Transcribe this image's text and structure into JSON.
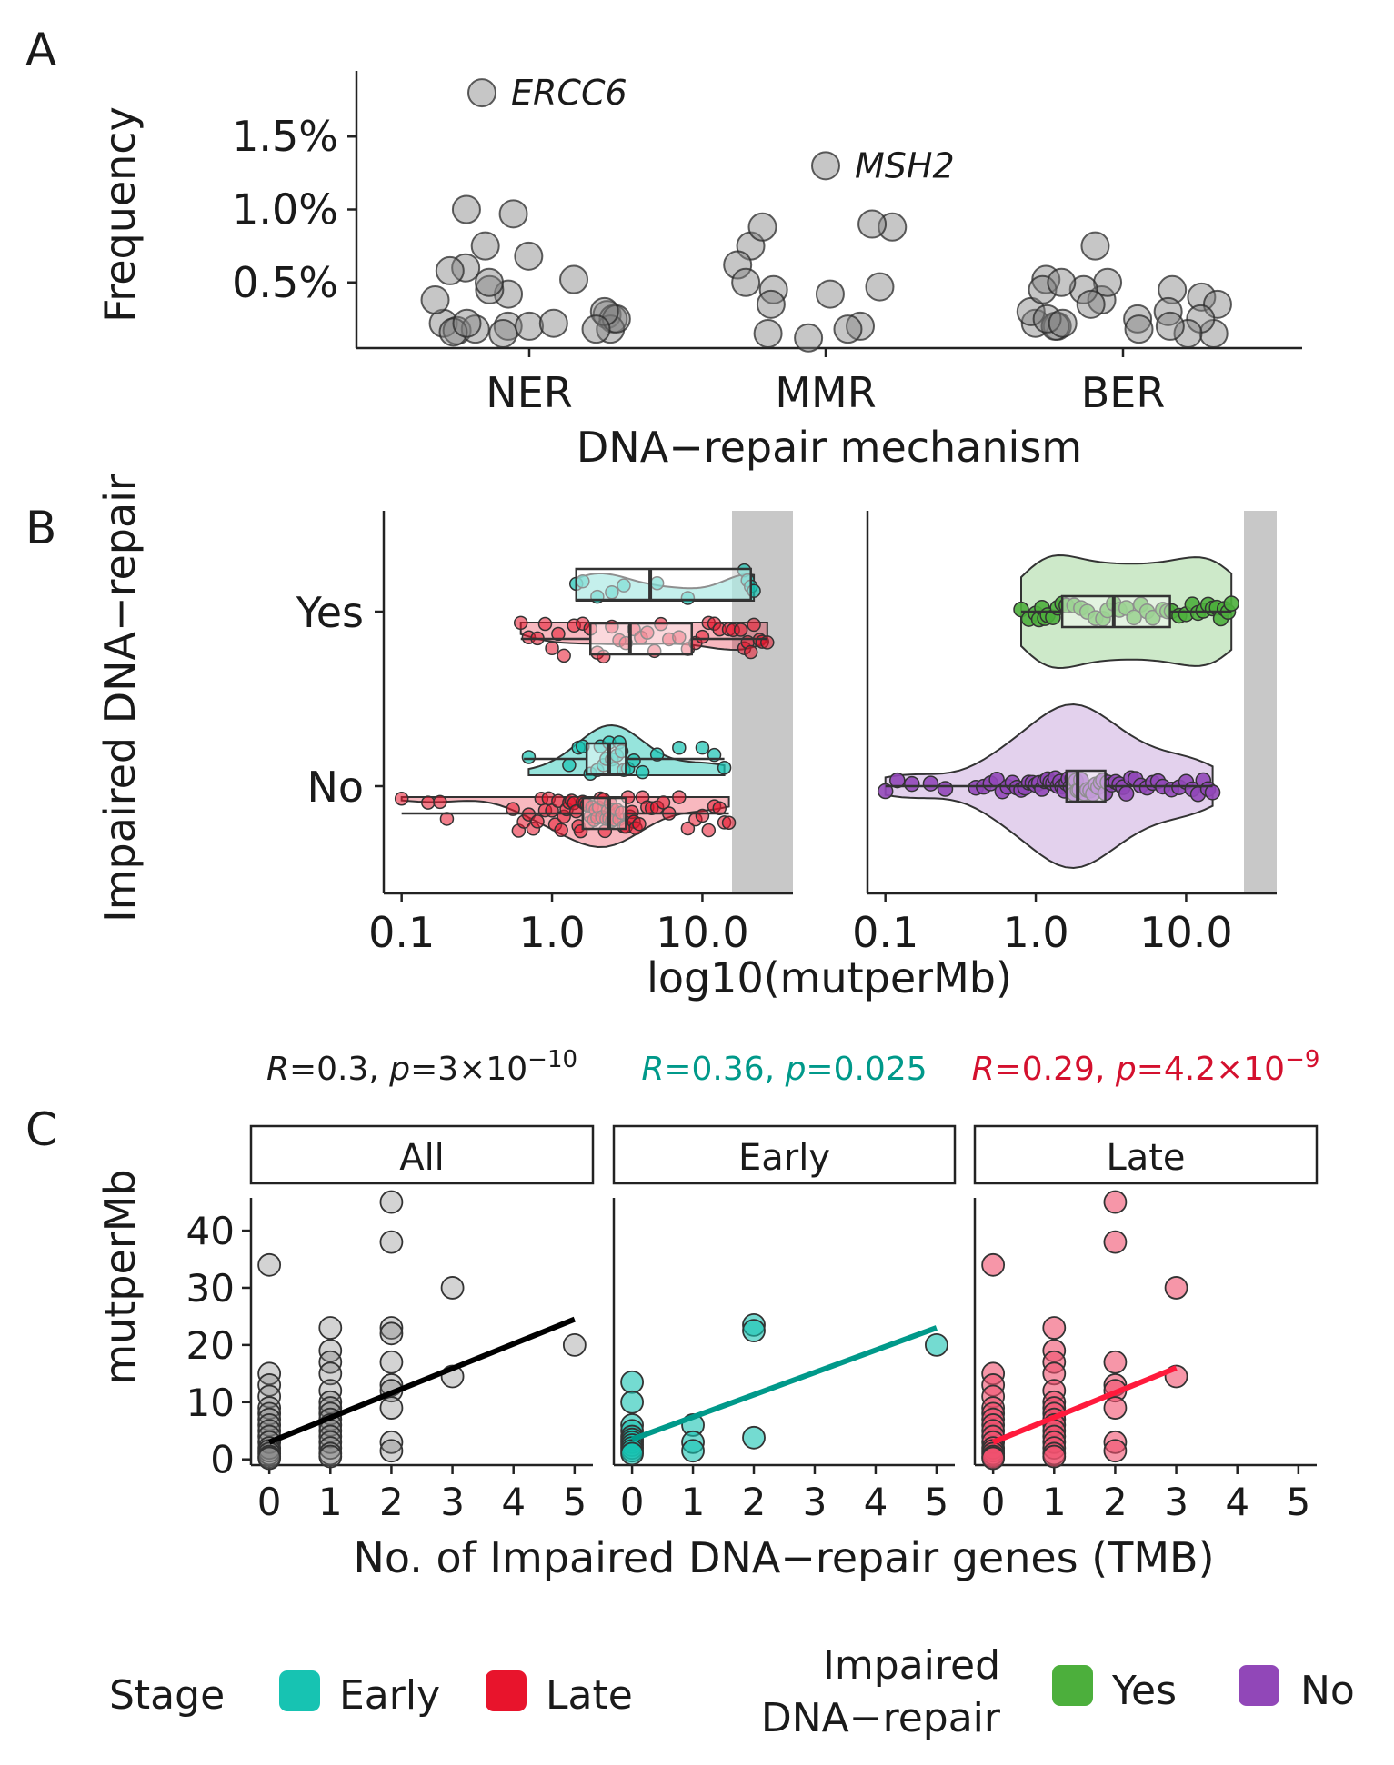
{
  "panels": {
    "A": {
      "letter": "A"
    },
    "B": {
      "letter": "B"
    },
    "C": {
      "letter": "C"
    }
  },
  "chart_data": [
    {
      "panel": "A",
      "type": "scatter",
      "xlabel": "DNA−repair mechanism",
      "ylabel": "Frequency",
      "categories": [
        "NER",
        "MMR",
        "BER"
      ],
      "yticks": [
        "0.5%",
        "1.0%",
        "1.5%"
      ],
      "ytick_values": [
        0.5,
        1.0,
        1.5
      ],
      "ylim": [
        0.05,
        1.95
      ],
      "labelled_points": [
        {
          "category": "NER",
          "label": "ERCC6",
          "value": 1.8
        },
        {
          "category": "MMR",
          "label": "MSH2",
          "value": 1.3
        }
      ],
      "series": [
        {
          "category": "NER",
          "values": [
            0.28,
            0.25,
            0.22,
            0.2,
            0.18,
            0.17,
            0.15,
            0.2,
            0.22,
            0.18,
            0.16,
            0.25,
            0.42,
            0.6,
            0.68,
            0.75,
            0.58,
            0.52,
            0.45,
            0.5,
            0.38,
            0.3,
            0.22,
            0.18,
            0.97,
            1.0
          ]
        },
        {
          "category": "MMR",
          "values": [
            0.75,
            0.88,
            0.9,
            0.62,
            0.45,
            0.5,
            0.47,
            0.35,
            0.42,
            0.2,
            0.15,
            0.12,
            0.88,
            0.18
          ]
        },
        {
          "category": "BER",
          "values": [
            0.75,
            0.45,
            0.38,
            0.3,
            0.25,
            0.22,
            0.2,
            0.15,
            0.5,
            0.52,
            0.45,
            0.4,
            0.35,
            0.3,
            0.25,
            0.2,
            0.18,
            0.15,
            0.45,
            0.35,
            0.25,
            0.22,
            0.2,
            0.5
          ]
        }
      ],
      "color": "#808080"
    },
    {
      "panel": "B",
      "type": "violin+box+scatter",
      "xlabel": "log10(mutperMb)",
      "ylabel": "Impaired DNA−repair",
      "xscale": "log10",
      "xlim": [
        0.085,
        40
      ],
      "xticks": [
        "0.1",
        "1.0",
        "10.0"
      ],
      "xtick_values": [
        0.1,
        1.0,
        10.0
      ],
      "categories": [
        "Yes",
        "No"
      ],
      "shade_from": 15,
      "facets": [
        {
          "facet": "Stage",
          "groups": [
            {
              "category": "Yes",
              "stage": "Early",
              "box": [
                1.45,
                1.45,
                4.5,
                21,
                21
              ],
              "points": [
                1.45,
                1.6,
                2.0,
                2.5,
                3.0,
                5.0,
                8.0,
                19,
                20,
                21,
                22
              ]
            },
            {
              "category": "Yes",
              "stage": "Late",
              "box": [
                0.62,
                1.8,
                3.3,
                8.5,
                27
              ],
              "points": [
                0.62,
                0.7,
                0.8,
                0.9,
                1.0,
                1.1,
                1.2,
                1.4,
                1.6,
                1.8,
                2.0,
                2.2,
                2.5,
                2.8,
                3.1,
                3.5,
                3.9,
                4.3,
                4.8,
                5.3,
                6,
                7,
                8,
                9,
                10,
                11,
                12,
                13,
                15,
                16,
                18,
                19,
                20,
                21,
                22,
                24,
                25,
                27
              ]
            },
            {
              "category": "No",
              "stage": "Early",
              "box": [
                0.65,
                1.7,
                2.4,
                3.1,
                14
              ],
              "points": [
                0.7,
                1.3,
                1.5,
                1.6,
                1.8,
                2.0,
                2.1,
                2.2,
                2.3,
                2.4,
                2.5,
                2.6,
                2.7,
                2.8,
                2.9,
                3.0,
                3.2,
                3.5,
                4.0,
                5.0,
                7.0,
                10.0,
                12.0,
                14.0
              ]
            },
            {
              "category": "No",
              "stage": "Late",
              "box": [
                0.1,
                1.6,
                2.4,
                3.1,
                15
              ],
              "points": [
                0.1,
                0.15,
                0.18,
                0.2,
                0.55,
                0.6,
                0.65,
                0.7,
                0.75,
                0.8,
                0.85,
                0.9,
                0.95,
                1.0,
                1.05,
                1.1,
                1.15,
                1.2,
                1.25,
                1.3,
                1.35,
                1.4,
                1.45,
                1.5,
                1.55,
                1.6,
                1.65,
                1.7,
                1.75,
                1.8,
                1.85,
                1.9,
                1.95,
                2.0,
                2.05,
                2.1,
                2.15,
                2.2,
                2.25,
                2.3,
                2.35,
                2.4,
                2.45,
                2.5,
                2.55,
                2.6,
                2.7,
                2.8,
                2.9,
                3.0,
                3.1,
                3.2,
                3.3,
                3.4,
                3.5,
                3.6,
                3.8,
                4.0,
                4.3,
                4.6,
                5.0,
                5.5,
                6.0,
                7.0,
                8.0,
                9.0,
                10.0,
                11.0,
                12.0,
                13.0,
                14.0,
                15.0
              ]
            }
          ]
        },
        {
          "facet": "Impaired DNA-repair",
          "groups": [
            {
              "category": "Yes",
              "group": "Yes",
              "box": [
                0.8,
                1.5,
                3.3,
                7.8,
                20
              ],
              "points": [
                0.8,
                0.9,
                1.0,
                1.05,
                1.1,
                1.15,
                1.2,
                1.3,
                1.4,
                1.5,
                1.6,
                1.8,
                2.0,
                2.2,
                2.5,
                2.8,
                3.0,
                3.3,
                3.6,
                4.0,
                4.5,
                5.0,
                5.5,
                6.0,
                7.0,
                7.5,
                8.0,
                9.0,
                10.0,
                11.0,
                12.0,
                13.0,
                14.0,
                15.0,
                16.0,
                17.0,
                18.0,
                19.0,
                20.0
              ]
            },
            {
              "category": "No",
              "group": "No",
              "box": [
                0.1,
                1.6,
                1.9,
                2.9,
                15
              ],
              "points": [
                0.1,
                0.12,
                0.15,
                0.2,
                0.25,
                0.4,
                0.45,
                0.5,
                0.55,
                0.6,
                0.65,
                0.7,
                0.75,
                0.8,
                0.85,
                0.9,
                0.95,
                1.0,
                1.05,
                1.1,
                1.15,
                1.2,
                1.25,
                1.3,
                1.35,
                1.4,
                1.45,
                1.5,
                1.55,
                1.6,
                1.65,
                1.7,
                1.75,
                1.8,
                1.85,
                1.9,
                1.95,
                2.0,
                2.1,
                2.2,
                2.3,
                2.4,
                2.5,
                2.6,
                2.7,
                2.8,
                2.9,
                3.0,
                3.2,
                3.4,
                3.6,
                3.8,
                4.0,
                4.3,
                4.6,
                5.0,
                5.5,
                6.0,
                6.5,
                7.0,
                8.0,
                9.0,
                10.0,
                11.0,
                12.0,
                13.0,
                14.0,
                15.0
              ]
            }
          ]
        }
      ]
    },
    {
      "panel": "C",
      "type": "scatter",
      "xlabel": "No. of Impaired DNA−repair genes (TMB)",
      "ylabel": "mutperMb",
      "xticks": [
        "0",
        "1",
        "2",
        "3",
        "4",
        "5"
      ],
      "yticks": [
        "0",
        "10",
        "20",
        "30",
        "40"
      ],
      "ytick_values": [
        0,
        10,
        20,
        30,
        40
      ],
      "xlim": [
        -0.3,
        5.3
      ],
      "ylim": [
        -1,
        47
      ],
      "facets": [
        {
          "strip": "All",
          "stat": {
            "r_label": "R",
            "r": "=0.3, ",
            "p_label": "p",
            "p": "=3×10",
            "p_exp": "−10"
          },
          "color": "#808080",
          "line_color": "#000000",
          "fit": [
            [
              0,
              3
            ],
            [
              5,
              24.5
            ]
          ],
          "points": [
            [
              0,
              34
            ],
            [
              0,
              15
            ],
            [
              0,
              13
            ],
            [
              0,
              11
            ],
            [
              0,
              9
            ],
            [
              0,
              8
            ],
            [
              0,
              7
            ],
            [
              0,
              6
            ],
            [
              0,
              5
            ],
            [
              0,
              4
            ],
            [
              0,
              3
            ],
            [
              0,
              2
            ],
            [
              0,
              1.5
            ],
            [
              0,
              1
            ],
            [
              0,
              0.5
            ],
            [
              0,
              0.2
            ],
            [
              1,
              23
            ],
            [
              1,
              19
            ],
            [
              1,
              17
            ],
            [
              1,
              15
            ],
            [
              1,
              12
            ],
            [
              1,
              10
            ],
            [
              1,
              9
            ],
            [
              1,
              8
            ],
            [
              1,
              7
            ],
            [
              1,
              6
            ],
            [
              1,
              5
            ],
            [
              1,
              4
            ],
            [
              1,
              3
            ],
            [
              1,
              2
            ],
            [
              1,
              1
            ],
            [
              1,
              0.5
            ],
            [
              2,
              45
            ],
            [
              2,
              38
            ],
            [
              2,
              23
            ],
            [
              2,
              22
            ],
            [
              2,
              17
            ],
            [
              2,
              13
            ],
            [
              2,
              12
            ],
            [
              2,
              9
            ],
            [
              2,
              3
            ],
            [
              2,
              1.5
            ],
            [
              3,
              30
            ],
            [
              3,
              14.5
            ],
            [
              5,
              20
            ]
          ]
        },
        {
          "strip": "Early",
          "stat": {
            "r_label": "R",
            "r": "=0.36, ",
            "p_label": "p",
            "p": "=0.025",
            "p_exp": ""
          },
          "color": "#17c3b2",
          "line_color": "#00998a",
          "fit": [
            [
              0,
              3.5
            ],
            [
              5,
              23
            ]
          ],
          "points": [
            [
              0,
              13.5
            ],
            [
              0,
              10
            ],
            [
              0,
              6
            ],
            [
              0,
              5
            ],
            [
              0,
              4
            ],
            [
              0,
              3.5
            ],
            [
              0,
              3
            ],
            [
              0,
              2.5
            ],
            [
              0,
              2
            ],
            [
              0,
              1.5
            ],
            [
              0,
              1
            ],
            [
              1,
              6
            ],
            [
              1,
              3
            ],
            [
              1,
              1.5
            ],
            [
              2,
              23.5
            ],
            [
              2,
              22.5
            ],
            [
              2,
              3.8
            ],
            [
              5,
              20
            ]
          ]
        },
        {
          "strip": "Late",
          "stat": {
            "r_label": "R",
            "r": "=0.29, ",
            "p_label": "p",
            "p": "=4.2×10",
            "p_exp": "−9"
          },
          "color": "#f0506e",
          "line_color": "#ff1a3c",
          "fit": [
            [
              0,
              3
            ],
            [
              3,
              16
            ]
          ],
          "points": [
            [
              0,
              34
            ],
            [
              0,
              15
            ],
            [
              0,
              13
            ],
            [
              0,
              11
            ],
            [
              0,
              9
            ],
            [
              0,
              8
            ],
            [
              0,
              7
            ],
            [
              0,
              6
            ],
            [
              0,
              5
            ],
            [
              0,
              4
            ],
            [
              0,
              3
            ],
            [
              0,
              2
            ],
            [
              0,
              1.5
            ],
            [
              0,
              1
            ],
            [
              0,
              0.5
            ],
            [
              0,
              0.2
            ],
            [
              1,
              23
            ],
            [
              1,
              19
            ],
            [
              1,
              17
            ],
            [
              1,
              15
            ],
            [
              1,
              12
            ],
            [
              1,
              10
            ],
            [
              1,
              9
            ],
            [
              1,
              8
            ],
            [
              1,
              7
            ],
            [
              1,
              6
            ],
            [
              1,
              5
            ],
            [
              1,
              4
            ],
            [
              1,
              3
            ],
            [
              1,
              2
            ],
            [
              1,
              1
            ],
            [
              1,
              0.5
            ],
            [
              2,
              45
            ],
            [
              2,
              38
            ],
            [
              2,
              17
            ],
            [
              2,
              13
            ],
            [
              2,
              12
            ],
            [
              2,
              9
            ],
            [
              2,
              3
            ],
            [
              2,
              1.5
            ],
            [
              3,
              30
            ],
            [
              3,
              14.5
            ]
          ]
        }
      ]
    }
  ],
  "legend": {
    "stage_title": "Stage",
    "stage_items": [
      {
        "label": "Early",
        "color": "#17c3b2"
      },
      {
        "label": "Late",
        "color": "#e8142c"
      }
    ],
    "repair_title_line1": "Impaired",
    "repair_title_line2": "DNA−repair",
    "repair_items": [
      {
        "label": "Yes",
        "color": "#4caf3c"
      },
      {
        "label": "No",
        "color": "#9147b8"
      }
    ]
  }
}
